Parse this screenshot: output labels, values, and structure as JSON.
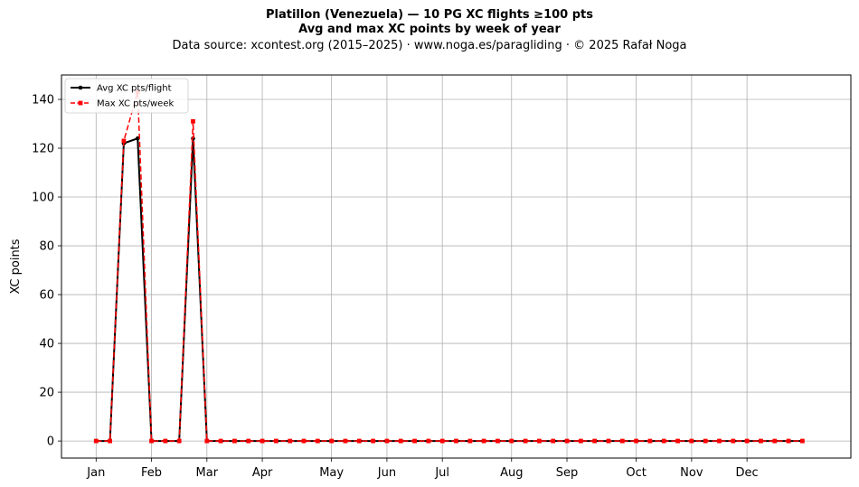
{
  "chart_data": {
    "type": "line",
    "title": "Platillon (Venezuela)  —  10 PG XC flights ≥100 pts",
    "subtitle": "Avg and max XC points by week of year",
    "source_note": "Data source: xcontest.org (2015–2025)  ·  www.noga.es/paragliding  ·  © 2025 Rafał Noga",
    "xlabel": "",
    "ylabel": "XC points",
    "ylim": [
      -7,
      150
    ],
    "xlim": [
      -2.5,
      54.5
    ],
    "yticks": [
      0,
      20,
      40,
      60,
      80,
      100,
      120,
      140
    ],
    "xticks": [
      {
        "label": "Jan",
        "week": 0
      },
      {
        "label": "Feb",
        "week": 4
      },
      {
        "label": "Mar",
        "week": 8
      },
      {
        "label": "Apr",
        "week": 12
      },
      {
        "label": "May",
        "week": 17
      },
      {
        "label": "Jun",
        "week": 21
      },
      {
        "label": "Jul",
        "week": 25
      },
      {
        "label": "Aug",
        "week": 30
      },
      {
        "label": "Sep",
        "week": 34
      },
      {
        "label": "Oct",
        "week": 39
      },
      {
        "label": "Nov",
        "week": 43
      },
      {
        "label": "Dec",
        "week": 47
      }
    ],
    "grid": true,
    "legend_position": "top-left",
    "x": [
      0,
      1,
      2,
      3,
      4,
      5,
      6,
      7,
      8,
      9,
      10,
      11,
      12,
      13,
      14,
      15,
      16,
      17,
      18,
      19,
      20,
      21,
      22,
      23,
      24,
      25,
      26,
      27,
      28,
      29,
      30,
      31,
      32,
      33,
      34,
      35,
      36,
      37,
      38,
      39,
      40,
      41,
      42,
      43,
      44,
      45,
      46,
      47,
      48,
      49,
      50,
      51
    ],
    "series": [
      {
        "name": "Avg XC pts/flight",
        "color": "#000000",
        "style": "solid",
        "marker": "circle",
        "values": [
          0,
          0,
          122,
          124,
          0,
          0,
          0,
          124,
          0,
          0,
          0,
          0,
          0,
          0,
          0,
          0,
          0,
          0,
          0,
          0,
          0,
          0,
          0,
          0,
          0,
          0,
          0,
          0,
          0,
          0,
          0,
          0,
          0,
          0,
          0,
          0,
          0,
          0,
          0,
          0,
          0,
          0,
          0,
          0,
          0,
          0,
          0,
          0,
          0,
          0,
          0,
          0
        ]
      },
      {
        "name": "Max XC pts/week",
        "color": "#ff0000",
        "style": "dashed",
        "marker": "square",
        "values": [
          0,
          0,
          123,
          143,
          0,
          0,
          0,
          131,
          0,
          0,
          0,
          0,
          0,
          0,
          0,
          0,
          0,
          0,
          0,
          0,
          0,
          0,
          0,
          0,
          0,
          0,
          0,
          0,
          0,
          0,
          0,
          0,
          0,
          0,
          0,
          0,
          0,
          0,
          0,
          0,
          0,
          0,
          0,
          0,
          0,
          0,
          0,
          0,
          0,
          0,
          0,
          0
        ]
      }
    ]
  }
}
